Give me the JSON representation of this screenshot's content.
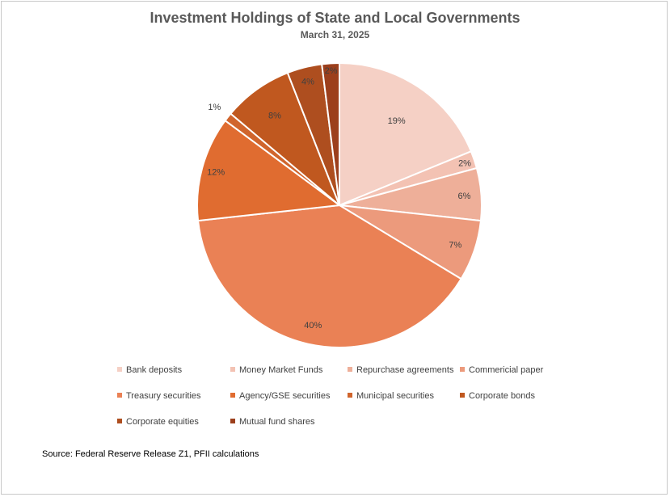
{
  "chart_data": {
    "type": "pie",
    "title": "Investment Holdings of State and Local Governments",
    "subtitle": "March 31, 2025",
    "categories": [
      "Bank deposits",
      "Money Market Funds",
      "Repurchase agreements",
      "Commericial paper",
      "Treasury securities",
      "Agency/GSE securities",
      "Municipal securities",
      "Corporate bonds",
      "Corporate equities",
      "Mutual fund shares"
    ],
    "values": [
      19,
      2,
      6,
      7,
      40,
      12,
      1,
      8,
      4,
      2
    ],
    "value_labels": [
      "19%",
      "2%",
      "6%",
      "7%",
      "40%",
      "12%",
      "1%",
      "8%",
      "4%",
      "2%"
    ],
    "colors": [
      "#f5d0c5",
      "#f3c2b3",
      "#eeaf99",
      "#ec9a7c",
      "#ea8155",
      "#e06c30",
      "#d0652d",
      "#c0581f",
      "#ae4e1f",
      "#9c3f1c"
    ],
    "legend_position": "bottom"
  },
  "source": "Source: Federal Reserve Release Z1, PFII calculations"
}
